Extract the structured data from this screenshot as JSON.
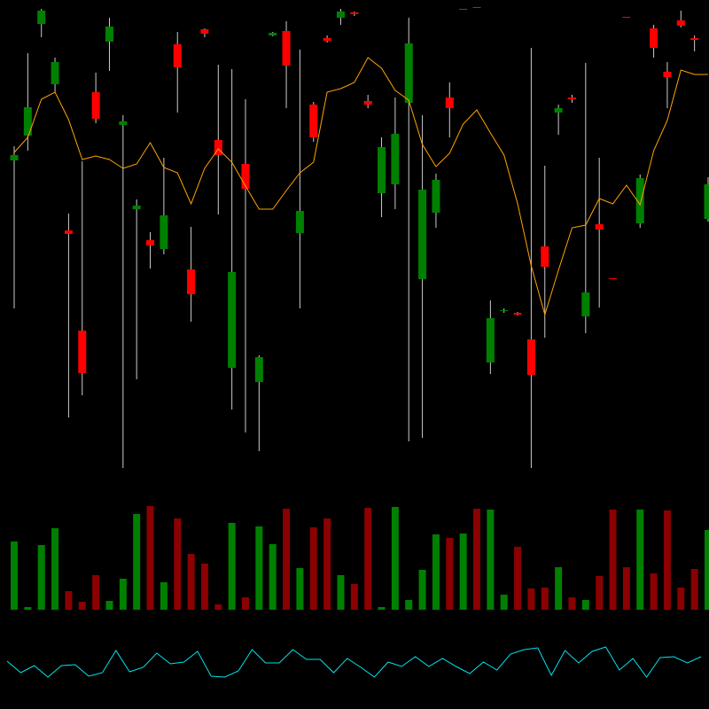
{
  "chart_data": [
    {
      "type": "candlestick",
      "open": [
        359,
        387,
        513,
        445,
        280,
        167,
        436,
        493,
        399,
        304,
        269,
        259,
        490,
        236,
        507,
        382,
        125,
        355,
        109,
        500,
        505,
        277,
        422,
        497,
        520,
        526,
        426,
        322,
        332,
        424,
        225,
        300,
        430,
        529,
        532,
        131,
        189,
        187,
        157,
        262,
        413,
        430,
        183,
        287,
        226,
        521,
        288,
        508,
        459,
        517,
        497,
        293
      ],
      "high": [
        375,
        480,
        530,
        475,
        299,
        358,
        458,
        520,
        410,
        315,
        278,
        362,
        504,
        284,
        508,
        467,
        462,
        428,
        139,
        504,
        516,
        484,
        425,
        500,
        530,
        527,
        433,
        385,
        430,
        520,
        410,
        344,
        447,
        530,
        532,
        201,
        192,
        188,
        486,
        353,
        422,
        433,
        469,
        362,
        226,
        521,
        343,
        512,
        470,
        528,
        500,
        340
      ],
      "low": [
        192,
        370,
        498,
        435,
        69,
        94,
        401,
        460,
        12,
        112,
        237,
        253,
        413,
        177,
        498,
        298,
        78,
        52,
        31,
        499,
        418,
        192,
        380,
        492,
        512,
        522,
        418,
        295,
        304,
        42,
        46,
        283,
        385,
        529,
        531,
        118,
        187,
        184,
        12,
        159,
        388,
        424,
        164,
        193,
        225,
        520,
        283,
        475,
        418,
        509,
        482,
        290
      ],
      "close": [
        365,
        419,
        528,
        470,
        276,
        119,
        406,
        510,
        403,
        308,
        263,
        297,
        464,
        208,
        502,
        365,
        233,
        327,
        137,
        503,
        466,
        302,
        385,
        494,
        527,
        524,
        422,
        374,
        389,
        491,
        326,
        337,
        418,
        530,
        531,
        181,
        190,
        185,
        117,
        239,
        418,
        428,
        210,
        281,
        225,
        520,
        339,
        486,
        453,
        511,
        495,
        332
      ],
      "up_color": "#008000",
      "down_color": "#ff0000",
      "wick_color": "#cccccc",
      "line_values": [
        368,
        385,
        428,
        436,
        405,
        360,
        364,
        360,
        350,
        355,
        379,
        351,
        345,
        310,
        350,
        372,
        357,
        330,
        304,
        304,
        325,
        345,
        357,
        436,
        440,
        447,
        475,
        463,
        438,
        427,
        377,
        352,
        367,
        400,
        416,
        390,
        365,
        310,
        240,
        185,
        235,
        283,
        286,
        316,
        310,
        331,
        309,
        370,
        404,
        461,
        456,
        456
      ],
      "line_color": "#ffa500",
      "ylim": [
        0,
        540
      ]
    },
    {
      "type": "bar",
      "values": [
        77,
        3,
        73,
        92,
        21,
        9,
        39,
        10,
        35,
        108,
        117,
        31,
        103,
        63,
        52,
        6,
        98,
        14,
        94,
        74,
        114,
        47,
        93,
        103,
        39,
        29,
        115,
        3,
        116,
        11,
        45,
        85,
        81,
        86,
        114,
        113,
        17,
        71,
        24,
        25,
        48,
        14,
        11,
        38,
        113,
        48,
        113,
        41,
        112,
        25,
        46,
        90
      ],
      "up_color": "#008000",
      "down_color": "#8b0000",
      "ylim": [
        0,
        128
      ]
    },
    {
      "type": "line",
      "values": [
        54,
        41,
        49,
        36,
        49,
        50,
        37,
        41,
        66,
        42,
        47,
        63,
        51,
        53,
        65,
        37,
        36,
        43,
        67,
        52,
        52,
        67,
        56,
        56,
        41,
        57,
        47,
        36,
        53,
        48,
        59,
        48,
        57,
        48,
        40,
        53,
        44,
        62,
        67,
        69,
        38,
        66,
        52,
        65,
        70,
        44,
        57,
        36,
        58,
        59,
        52,
        59
      ],
      "color": "#00e5ee",
      "ylim": [
        0,
        100
      ]
    }
  ]
}
